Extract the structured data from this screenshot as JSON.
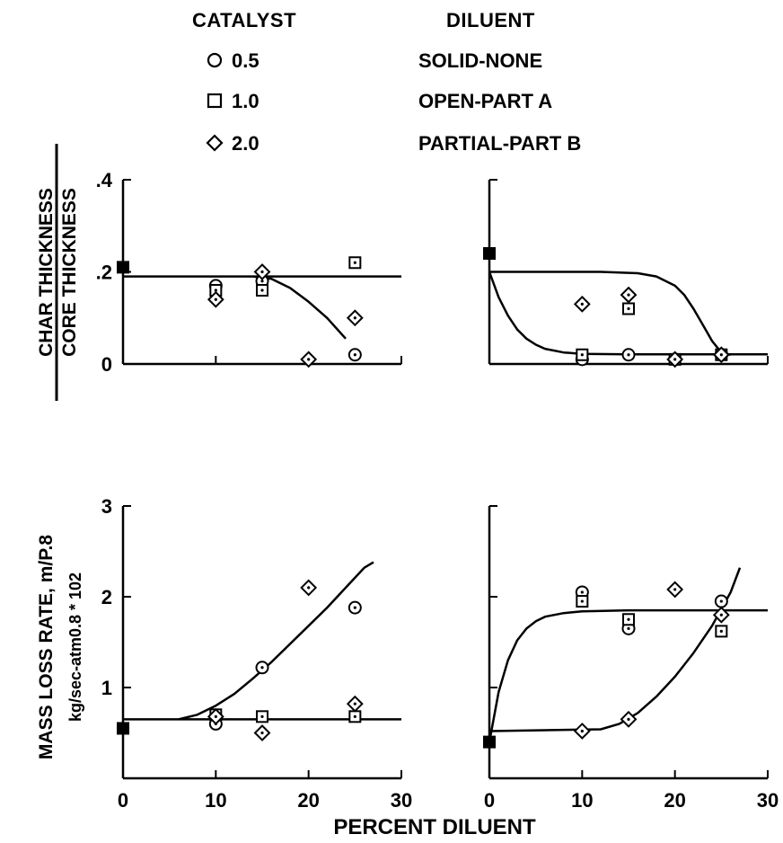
{
  "legend": {
    "catalyst_title": "CATALYST",
    "diluent_title": "DILUENT",
    "catalyst_items": [
      {
        "symbol": "circle-icon",
        "label": "0.5"
      },
      {
        "symbol": "square-icon",
        "label": "1.0"
      },
      {
        "symbol": "diamond-icon",
        "label": "2.0"
      }
    ],
    "diluent_items": [
      "SOLID-NONE",
      "OPEN-PART A",
      "PARTIAL-PART B"
    ]
  },
  "x_axis_title": "PERCENT DILUENT",
  "chart_data": [
    {
      "type": "scatter",
      "panel": "top-left",
      "ylabel_numerator": "CHAR THICKNESS",
      "ylabel_denominator": "CORE THICKNESS",
      "xlim": [
        0,
        30
      ],
      "ylim": [
        0,
        0.4
      ],
      "yticks": [
        {
          "v": 0,
          "label": "0"
        },
        {
          "v": 0.2,
          "label": ".2"
        },
        {
          "v": 0.4,
          "label": ".4"
        }
      ],
      "xticks": [],
      "reference_point": {
        "x": 0,
        "y": 0.21
      },
      "series": [
        {
          "name": "0.5",
          "marker": "circle",
          "points": [
            [
              10,
              0.17
            ],
            [
              15,
              0.18
            ],
            [
              25,
              0.02
            ]
          ]
        },
        {
          "name": "1.0",
          "marker": "square",
          "points": [
            [
              10,
              0.16
            ],
            [
              15,
              0.16
            ],
            [
              25,
              0.22
            ]
          ]
        },
        {
          "name": "2.0",
          "marker": "diamond",
          "points": [
            [
              10,
              0.14
            ],
            [
              15,
              0.2
            ],
            [
              20,
              0.01
            ],
            [
              25,
              0.1
            ]
          ]
        }
      ],
      "curves": [
        {
          "points": [
            [
              0,
              0.19
            ],
            [
              30,
              0.19
            ]
          ]
        },
        {
          "points": [
            [
              14,
              0.19
            ],
            [
              16,
              0.185
            ],
            [
              18,
              0.165
            ],
            [
              20,
              0.135
            ],
            [
              22,
              0.1
            ],
            [
              24,
              0.055
            ]
          ]
        }
      ]
    },
    {
      "type": "scatter",
      "panel": "top-right",
      "xlim": [
        0,
        30
      ],
      "ylim": [
        0,
        0.4
      ],
      "yticks": [],
      "xticks": [],
      "reference_point": {
        "x": 0,
        "y": 0.24
      },
      "series": [
        {
          "name": "0.5",
          "marker": "circle",
          "points": [
            [
              10,
              0.01
            ],
            [
              15,
              0.02
            ],
            [
              20,
              0.01
            ],
            [
              25,
              0.02
            ]
          ]
        },
        {
          "name": "1.0",
          "marker": "square",
          "points": [
            [
              10,
              0.02
            ],
            [
              15,
              0.12
            ],
            [
              20,
              0.01
            ],
            [
              25,
              0.02
            ]
          ]
        },
        {
          "name": "2.0",
          "marker": "diamond",
          "points": [
            [
              10,
              0.13
            ],
            [
              15,
              0.15
            ],
            [
              20,
              0.01
            ],
            [
              25,
              0.02
            ]
          ]
        }
      ],
      "curves": [
        {
          "points": [
            [
              0,
              0.2
            ],
            [
              12,
              0.2
            ],
            [
              16,
              0.197
            ],
            [
              18,
              0.19
            ],
            [
              20,
              0.17
            ],
            [
              21,
              0.15
            ],
            [
              22,
              0.12
            ],
            [
              23,
              0.085
            ],
            [
              24,
              0.05
            ],
            [
              25,
              0.025
            ],
            [
              26,
              0.02
            ]
          ]
        },
        {
          "points": [
            [
              0,
              0.2
            ],
            [
              1,
              0.145
            ],
            [
              2,
              0.105
            ],
            [
              3,
              0.075
            ],
            [
              4,
              0.055
            ],
            [
              5,
              0.042
            ],
            [
              6,
              0.033
            ],
            [
              8,
              0.025
            ],
            [
              10,
              0.022
            ],
            [
              15,
              0.021
            ],
            [
              30,
              0.021
            ]
          ]
        }
      ]
    },
    {
      "type": "scatter",
      "panel": "bottom-left",
      "ylabel_line1": "MASS LOSS RATE, m/P.8",
      "ylabel_line2": "kg/sec-atm0.8 * 102",
      "xlim": [
        0,
        30
      ],
      "ylim": [
        0,
        3
      ],
      "yticks": [
        {
          "v": 1,
          "label": "1"
        },
        {
          "v": 2,
          "label": "2"
        },
        {
          "v": 3,
          "label": "3"
        }
      ],
      "xticks": [
        {
          "v": 0,
          "label": "0"
        },
        {
          "v": 10,
          "label": "10"
        },
        {
          "v": 20,
          "label": "20"
        },
        {
          "v": 30,
          "label": "30"
        }
      ],
      "reference_point": {
        "x": 0,
        "y": 0.55
      },
      "series": [
        {
          "name": "0.5",
          "marker": "circle",
          "points": [
            [
              10,
              0.6
            ],
            [
              15,
              1.22
            ],
            [
              25,
              1.88
            ]
          ]
        },
        {
          "name": "1.0",
          "marker": "square",
          "points": [
            [
              10,
              0.7
            ],
            [
              15,
              0.68
            ],
            [
              25,
              0.68
            ]
          ]
        },
        {
          "name": "2.0",
          "marker": "diamond",
          "points": [
            [
              10,
              0.68
            ],
            [
              15,
              0.5
            ],
            [
              20,
              2.1
            ],
            [
              25,
              0.82
            ]
          ]
        }
      ],
      "curves": [
        {
          "points": [
            [
              0,
              0.65
            ],
            [
              30,
              0.65
            ]
          ]
        },
        {
          "points": [
            [
              6,
              0.65
            ],
            [
              8,
              0.7
            ],
            [
              10,
              0.8
            ],
            [
              12,
              0.93
            ],
            [
              14,
              1.1
            ],
            [
              16,
              1.28
            ],
            [
              18,
              1.48
            ],
            [
              20,
              1.68
            ],
            [
              22,
              1.88
            ],
            [
              24,
              2.1
            ],
            [
              26,
              2.32
            ],
            [
              27,
              2.38
            ]
          ]
        }
      ]
    },
    {
      "type": "scatter",
      "panel": "bottom-right",
      "xlim": [
        0,
        30
      ],
      "ylim": [
        0,
        3
      ],
      "yticks": [],
      "xticks": [
        {
          "v": 0,
          "label": "0"
        },
        {
          "v": 10,
          "label": "10"
        },
        {
          "v": 20,
          "label": "20"
        },
        {
          "v": 30,
          "label": "30"
        }
      ],
      "reference_point": {
        "x": 0,
        "y": 0.4
      },
      "series": [
        {
          "name": "0.5",
          "marker": "circle",
          "points": [
            [
              10,
              2.05
            ],
            [
              15,
              1.65
            ],
            [
              25,
              1.95
            ]
          ]
        },
        {
          "name": "1.0",
          "marker": "square",
          "points": [
            [
              10,
              1.95
            ],
            [
              15,
              1.75
            ],
            [
              25,
              1.62
            ]
          ]
        },
        {
          "name": "2.0",
          "marker": "diamond",
          "points": [
            [
              10,
              0.52
            ],
            [
              15,
              0.65
            ],
            [
              20,
              2.08
            ],
            [
              25,
              1.8
            ]
          ]
        }
      ],
      "curves": [
        {
          "points": [
            [
              0,
              0.4
            ],
            [
              1,
              0.95
            ],
            [
              2,
              1.3
            ],
            [
              3,
              1.52
            ],
            [
              4,
              1.65
            ],
            [
              5,
              1.73
            ],
            [
              6,
              1.78
            ],
            [
              8,
              1.82
            ],
            [
              10,
              1.84
            ],
            [
              15,
              1.85
            ],
            [
              30,
              1.85
            ]
          ]
        },
        {
          "points": [
            [
              0,
              0.52
            ],
            [
              12,
              0.54
            ],
            [
              14,
              0.6
            ],
            [
              16,
              0.72
            ],
            [
              18,
              0.9
            ],
            [
              20,
              1.12
            ],
            [
              22,
              1.38
            ],
            [
              24,
              1.68
            ],
            [
              26,
              2.05
            ],
            [
              27,
              2.32
            ]
          ]
        }
      ]
    }
  ]
}
